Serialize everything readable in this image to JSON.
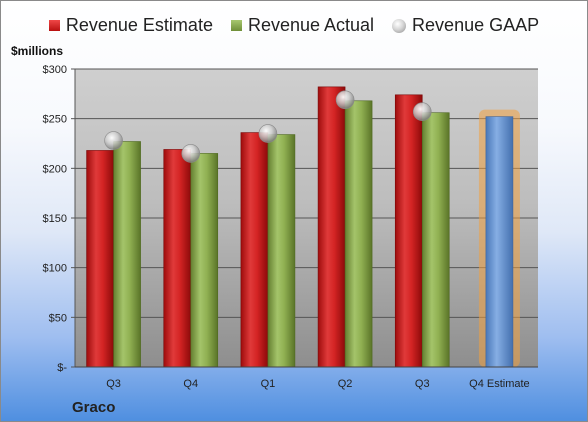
{
  "chart_data": {
    "type": "bar",
    "categories": [
      "Q3",
      "Q4",
      "Q1",
      "Q2",
      "Q3",
      "Q4 Estimate"
    ],
    "series": [
      {
        "name": "Revenue Estimate",
        "color": "#c81e1e",
        "values": [
          218,
          219,
          236,
          282,
          274,
          null
        ]
      },
      {
        "name": "Revenue Actual",
        "color": "#86a64a",
        "values": [
          227,
          215,
          234,
          268,
          256,
          null
        ]
      },
      {
        "name": "Revenue GAAP",
        "color": "#b0b0b0",
        "values": [
          228,
          215,
          235,
          269,
          257,
          null
        ]
      }
    ],
    "forecast": {
      "category_index": 5,
      "value": 252,
      "color": "#6a9ad6",
      "glow": "#f0a040"
    },
    "ylabel": "$millions",
    "ylim": [
      0,
      300
    ],
    "yticks": [
      0,
      50,
      100,
      150,
      200,
      250,
      300
    ],
    "ytick_labels": [
      "$-",
      "$50",
      "$100",
      "$150",
      "$200",
      "$250",
      "$300"
    ],
    "grid": true,
    "legend": "top"
  },
  "brand": "Graco"
}
